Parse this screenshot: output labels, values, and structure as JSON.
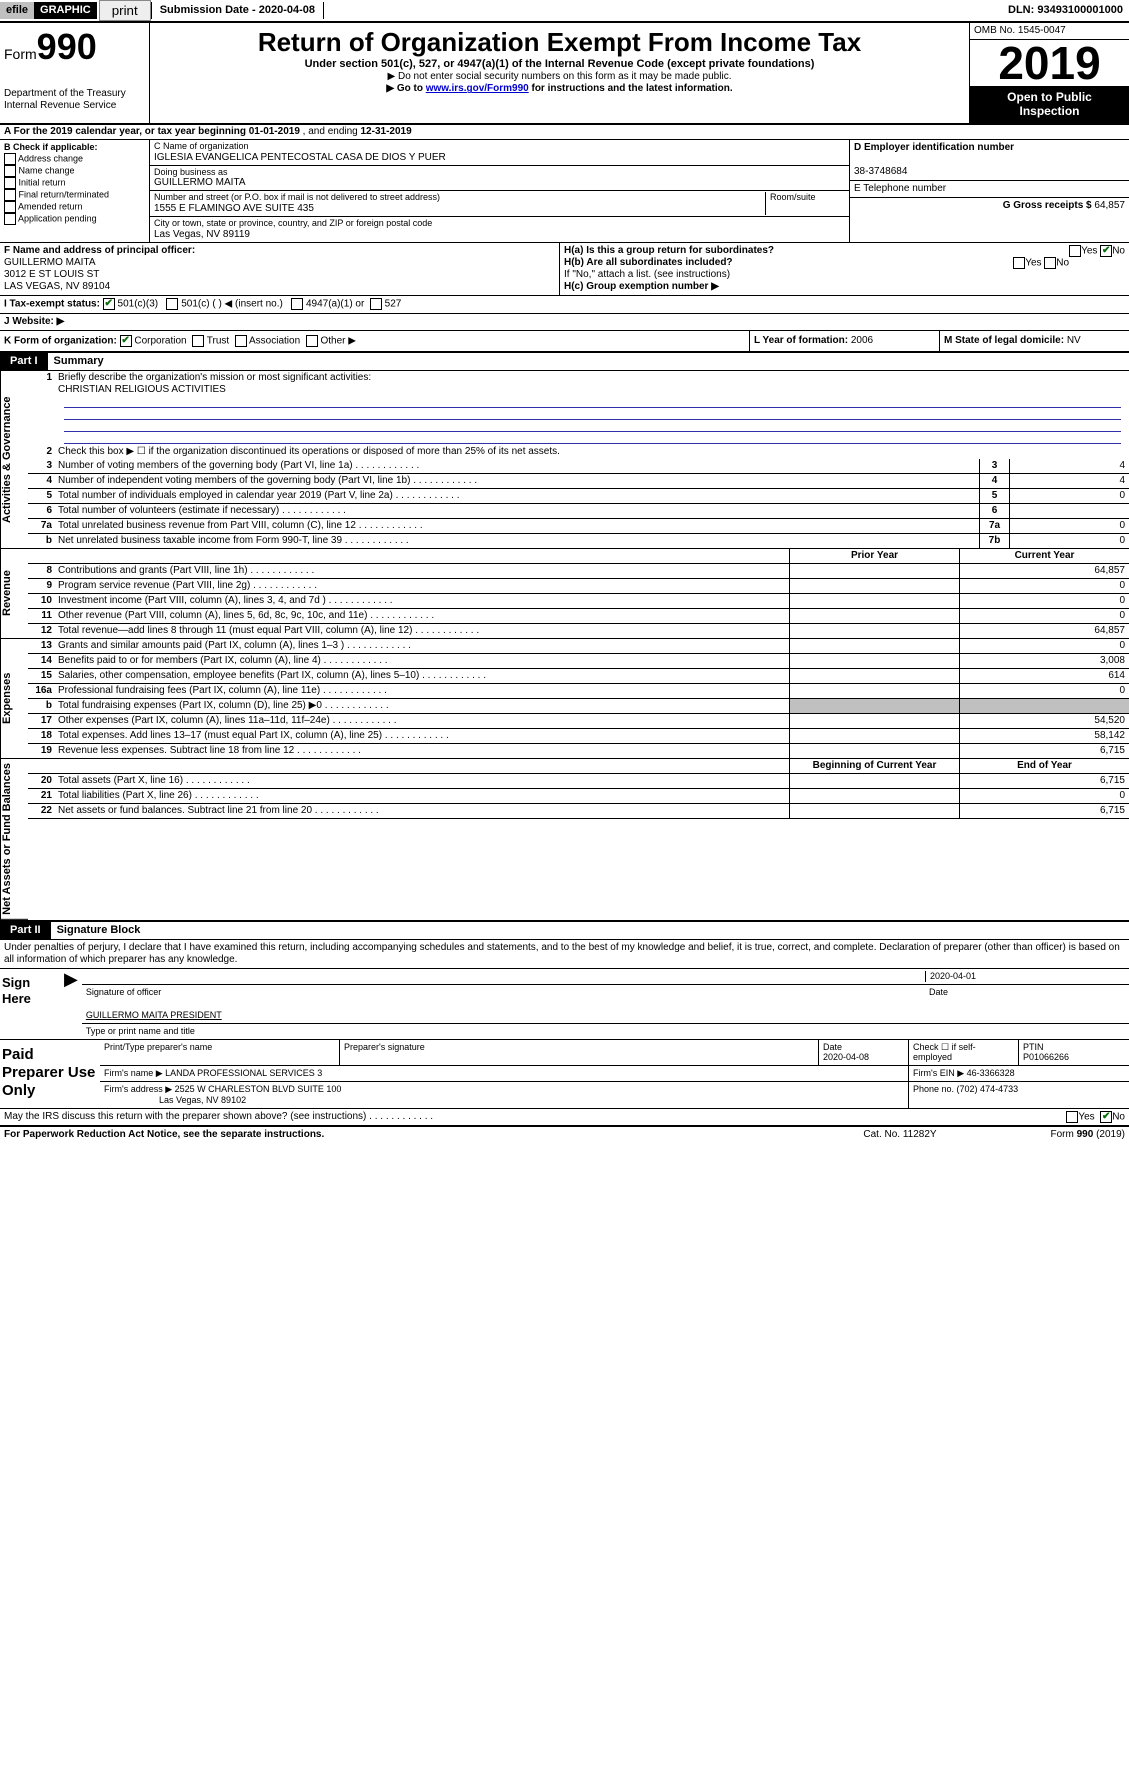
{
  "topbar": {
    "efile": "efile",
    "graphic": "GRAPHIC",
    "print": "print",
    "submission_label": "Submission Date - ",
    "submission_date": "2020-04-08",
    "dln_label": "DLN: ",
    "dln": "93493100001000"
  },
  "header": {
    "form_prefix": "Form",
    "form_number": "990",
    "dept": "Department of the Treasury",
    "irs": "Internal Revenue Service",
    "title": "Return of Organization Exempt From Income Tax",
    "sub1": "Under section 501(c), 527, or 4947(a)(1) of the Internal Revenue Code (except private foundations)",
    "sub2": "▶ Do not enter social security numbers on this form as it may be made public.",
    "sub3_pre": "▶ Go to ",
    "sub3_link": "www.irs.gov/Form990",
    "sub3_post": " for instructions and the latest information.",
    "omb": "OMB No. 1545-0047",
    "year": "2019",
    "inspect1": "Open to Public",
    "inspect2": "Inspection"
  },
  "row_a": {
    "text_pre": "A For the 2019 calendar year, or tax year beginning ",
    "begin": "01-01-2019",
    "mid": " , and ending ",
    "end": "12-31-2019"
  },
  "col_b": {
    "title": "B Check if applicable:",
    "opts": [
      "Address change",
      "Name change",
      "Initial return",
      "Final return/terminated",
      "Amended return",
      "Application pending"
    ]
  },
  "col_c": {
    "name_label": "C Name of organization",
    "name": "IGLESIA EVANGELICA PENTECOSTAL CASA DE DIOS Y PUER",
    "dba_label": "Doing business as",
    "dba": "GUILLERMO MAITA",
    "addr_label": "Number and street (or P.O. box if mail is not delivered to street address)",
    "room_label": "Room/suite",
    "addr": "1555 E FLAMINGO AVE SUITE 435",
    "city_label": "City or town, state or province, country, and ZIP or foreign postal code",
    "city": "Las Vegas, NV  89119"
  },
  "col_de": {
    "d_label": "D Employer identification number",
    "ein": "38-3748684",
    "e_label": "E Telephone number",
    "phone": "",
    "g_label": "G Gross receipts $ ",
    "g_val": "64,857"
  },
  "col_f": {
    "label": "F  Name and address of principal officer:",
    "name": "GUILLERMO MAITA",
    "addr1": "3012 E ST LOUIS ST",
    "addr2": "LAS VEGAS, NV  89104"
  },
  "col_h": {
    "ha": "H(a)  Is this a group return for subordinates?",
    "ha_yes": "Yes",
    "ha_no": "No",
    "hb": "H(b)  Are all subordinates included?",
    "hb_yes": "Yes",
    "hb_no": "No",
    "hb_note": "If \"No,\" attach a list. (see instructions)",
    "hc": "H(c)  Group exemption number ▶"
  },
  "row_i": {
    "label": "I   Tax-exempt status:",
    "o1": "501(c)(3)",
    "o2": "501(c) (  ) ◀ (insert no.)",
    "o3": "4947(a)(1) or",
    "o4": "527"
  },
  "row_j": {
    "label": "J   Website: ▶"
  },
  "row_k": {
    "label": "K Form of organization:",
    "o1": "Corporation",
    "o2": "Trust",
    "o3": "Association",
    "o4": "Other ▶"
  },
  "row_lm": {
    "l_label": "L Year of formation: ",
    "l_val": "2006",
    "m_label": "M State of legal domicile: ",
    "m_val": "NV"
  },
  "part1": {
    "bar": "Part I",
    "title": "Summary",
    "sections": {
      "gov": "Activities & Governance",
      "rev": "Revenue",
      "exp": "Expenses",
      "net": "Net Assets or Fund Balances"
    },
    "l1": "Briefly describe the organization's mission or most significant activities:",
    "l1v": "CHRISTIAN RELIGIOUS ACTIVITIES",
    "l2": "Check this box ▶ ☐  if the organization discontinued its operations or disposed of more than 25% of its net assets.",
    "lines_gov": [
      {
        "n": "3",
        "t": "Number of voting members of the governing body (Part VI, line 1a)",
        "bn": "3",
        "v": "4"
      },
      {
        "n": "4",
        "t": "Number of independent voting members of the governing body (Part VI, line 1b)",
        "bn": "4",
        "v": "4"
      },
      {
        "n": "5",
        "t": "Total number of individuals employed in calendar year 2019 (Part V, line 2a)",
        "bn": "5",
        "v": "0"
      },
      {
        "n": "6",
        "t": "Total number of volunteers (estimate if necessary)",
        "bn": "6",
        "v": ""
      },
      {
        "n": "7a",
        "t": "Total unrelated business revenue from Part VIII, column (C), line 12",
        "bn": "7a",
        "v": "0"
      },
      {
        "n": "b",
        "t": "Net unrelated business taxable income from Form 990-T, line 39",
        "bn": "7b",
        "v": "0"
      }
    ],
    "hdr_prior": "Prior Year",
    "hdr_curr": "Current Year",
    "lines_rev": [
      {
        "n": "8",
        "t": "Contributions and grants (Part VIII, line 1h)",
        "p": "",
        "c": "64,857"
      },
      {
        "n": "9",
        "t": "Program service revenue (Part VIII, line 2g)",
        "p": "",
        "c": "0"
      },
      {
        "n": "10",
        "t": "Investment income (Part VIII, column (A), lines 3, 4, and 7d )",
        "p": "",
        "c": "0"
      },
      {
        "n": "11",
        "t": "Other revenue (Part VIII, column (A), lines 5, 6d, 8c, 9c, 10c, and 11e)",
        "p": "",
        "c": "0"
      },
      {
        "n": "12",
        "t": "Total revenue—add lines 8 through 11 (must equal Part VIII, column (A), line 12)",
        "p": "",
        "c": "64,857"
      }
    ],
    "lines_exp": [
      {
        "n": "13",
        "t": "Grants and similar amounts paid (Part IX, column (A), lines 1–3 )",
        "p": "",
        "c": "0"
      },
      {
        "n": "14",
        "t": "Benefits paid to or for members (Part IX, column (A), line 4)",
        "p": "",
        "c": "3,008"
      },
      {
        "n": "15",
        "t": "Salaries, other compensation, employee benefits (Part IX, column (A), lines 5–10)",
        "p": "",
        "c": "614"
      },
      {
        "n": "16a",
        "t": "Professional fundraising fees (Part IX, column (A), line 11e)",
        "p": "",
        "c": "0"
      },
      {
        "n": "b",
        "t": "Total fundraising expenses (Part IX, column (D), line 25) ▶0",
        "p": "grey",
        "c": "grey"
      },
      {
        "n": "17",
        "t": "Other expenses (Part IX, column (A), lines 11a–11d, 11f–24e)",
        "p": "",
        "c": "54,520"
      },
      {
        "n": "18",
        "t": "Total expenses. Add lines 13–17 (must equal Part IX, column (A), line 25)",
        "p": "",
        "c": "58,142"
      },
      {
        "n": "19",
        "t": "Revenue less expenses. Subtract line 18 from line 12",
        "p": "",
        "c": "6,715"
      }
    ],
    "hdr_begin": "Beginning of Current Year",
    "hdr_end": "End of Year",
    "lines_net": [
      {
        "n": "20",
        "t": "Total assets (Part X, line 16)",
        "p": "",
        "c": "6,715"
      },
      {
        "n": "21",
        "t": "Total liabilities (Part X, line 26)",
        "p": "",
        "c": "0"
      },
      {
        "n": "22",
        "t": "Net assets or fund balances. Subtract line 21 from line 20",
        "p": "",
        "c": "6,715"
      }
    ]
  },
  "part2": {
    "bar": "Part II",
    "title": "Signature Block",
    "declare": "Under penalties of perjury, I declare that I have examined this return, including accompanying schedules and statements, and to the best of my knowledge and belief, it is true, correct, and complete. Declaration of preparer (other than officer) is based on all information of which preparer has any knowledge.",
    "sign_here": "Sign Here",
    "sig_date": "2020-04-01",
    "sig_of": "Signature of officer",
    "date_l": "Date",
    "typed": "GUILLERMO MAITA PRESIDENT",
    "typed_l": "Type or print name and title",
    "paid": "Paid Preparer Use Only",
    "pp_name_l": "Print/Type preparer's name",
    "pp_sig_l": "Preparer's signature",
    "pp_date_l": "Date",
    "pp_date": "2020-04-08",
    "pp_check_l": "Check ☐ if self-employed",
    "ptin_l": "PTIN",
    "ptin": "P01066266",
    "firm_name_l": "Firm's name   ▶ ",
    "firm_name": "LANDA PROFESSIONAL SERVICES 3",
    "firm_ein_l": "Firm's EIN ▶ ",
    "firm_ein": "46-3366328",
    "firm_addr_l": "Firm's address ▶ ",
    "firm_addr1": "2525 W CHARLESTON BLVD SUITE 100",
    "firm_addr2": "Las Vegas, NV  89102",
    "phone_l": "Phone no. ",
    "phone": "(702) 474-4733",
    "discuss": "May the IRS discuss this return with the preparer shown above? (see instructions)",
    "yes": "Yes",
    "no": "No"
  },
  "footer": {
    "l": "For Paperwork Reduction Act Notice, see the separate instructions.",
    "c": "Cat. No. 11282Y",
    "r": "Form 990 (2019)"
  },
  "colors": {
    "black": "#000000",
    "link": "#0000cc",
    "rule": "#3030aa",
    "grey": "#c0c0c0",
    "green": "#0a6e0a"
  }
}
